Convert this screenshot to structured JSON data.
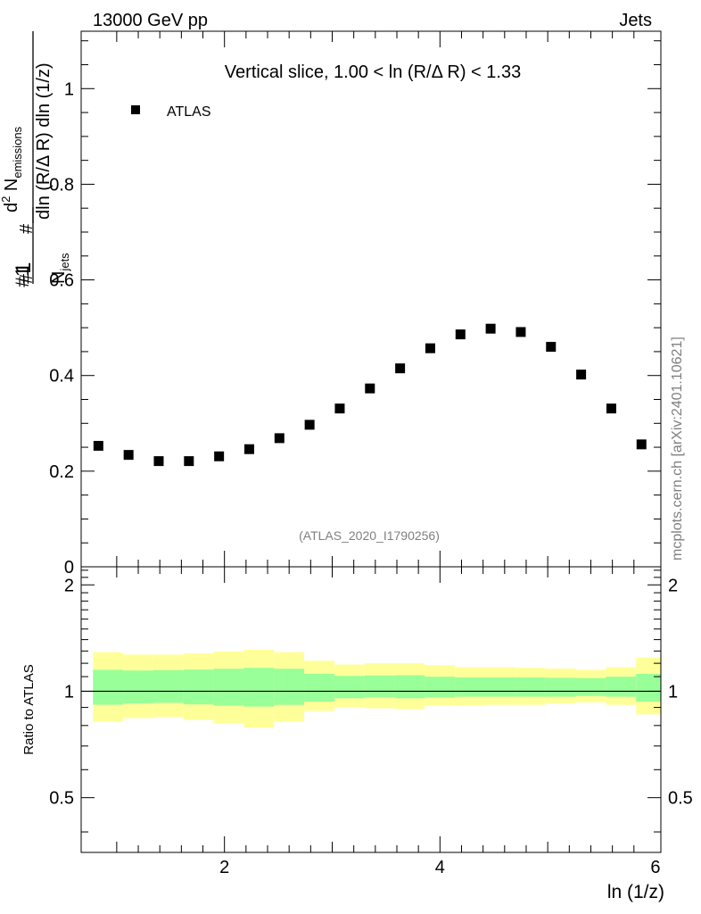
{
  "header": {
    "left": "13000 GeV pp",
    "right": "Jets"
  },
  "side_label": "mcplots.cern.ch [arXiv:2401.10621]",
  "chart_data": [
    {
      "type": "scatter",
      "title": "Vertical slice, 1.00 < ln (R/Δ R) < 1.33",
      "watermark": "(ATLAS_2020_I1790256)",
      "xlabel": "ln (1/z)",
      "ylabel_parts": {
        "prefix1": "#",
        "one": "1",
        "n_jets": "N",
        "n_jets_sub": "jets",
        "prefix2": "#",
        "num": "d",
        "num_sup": "2",
        "num_main": " N",
        "num_sub": "emissions",
        "den": "dln (R/Δ R) dln (1/z)"
      },
      "xlim": [
        0.67,
        6.05
      ],
      "ylim": [
        0,
        1.12
      ],
      "y_ticks": [
        0,
        0.2,
        0.4,
        0.6,
        0.8,
        1
      ],
      "y_tick_labels": [
        "0",
        "0.2",
        "0.4",
        "0.6",
        "0.8",
        "1"
      ],
      "legend": [
        {
          "label": "ATLAS",
          "marker": "square",
          "color": "#000000"
        }
      ],
      "series": [
        {
          "name": "ATLAS",
          "x": [
            0.83,
            1.11,
            1.39,
            1.67,
            1.95,
            2.23,
            2.51,
            2.79,
            3.07,
            3.35,
            3.63,
            3.91,
            4.19,
            4.47,
            4.75,
            5.03,
            5.31,
            5.59,
            5.87
          ],
          "y": [
            0.253,
            0.234,
            0.221,
            0.221,
            0.231,
            0.246,
            0.269,
            0.297,
            0.331,
            0.373,
            0.415,
            0.457,
            0.486,
            0.498,
            0.491,
            0.46,
            0.402,
            0.331,
            0.256
          ]
        }
      ]
    },
    {
      "type": "ratio",
      "ylabel": "Ratio to ATLAS",
      "xlabel": "ln (1/z)",
      "xlim": [
        0.67,
        6.05
      ],
      "ylim": [
        0.35,
        2.25
      ],
      "y_ticks": [
        0.5,
        1,
        2
      ],
      "y_tick_labels": [
        "0.5",
        "1",
        "2"
      ],
      "x_ticks": [
        2,
        4,
        6
      ],
      "x_tick_labels": [
        "2",
        "4",
        "6"
      ],
      "reference": 1,
      "bands": {
        "edges": [
          0.78,
          1.06,
          1.34,
          1.62,
          1.9,
          2.18,
          2.46,
          2.74,
          3.02,
          3.3,
          3.58,
          3.86,
          4.14,
          4.42,
          4.7,
          4.98,
          5.26,
          5.54,
          5.82,
          6.05
        ],
        "inner": {
          "color": "#99ff99",
          "lo": [
            0.916,
            0.924,
            0.927,
            0.918,
            0.91,
            0.905,
            0.915,
            0.935,
            0.955,
            0.96,
            0.955,
            0.96,
            0.965,
            0.965,
            0.965,
            0.965,
            0.97,
            0.965,
            0.935
          ],
          "hi": [
            1.15,
            1.145,
            1.148,
            1.152,
            1.158,
            1.165,
            1.158,
            1.12,
            1.105,
            1.108,
            1.11,
            1.1,
            1.095,
            1.095,
            1.095,
            1.092,
            1.09,
            1.1,
            1.12
          ]
        },
        "outer": {
          "color": "#ffff99",
          "lo": [
            0.82,
            0.84,
            0.845,
            0.83,
            0.81,
            0.79,
            0.82,
            0.88,
            0.9,
            0.895,
            0.89,
            0.91,
            0.91,
            0.915,
            0.915,
            0.925,
            0.93,
            0.915,
            0.86
          ],
          "hi": [
            1.29,
            1.27,
            1.27,
            1.28,
            1.295,
            1.31,
            1.29,
            1.22,
            1.19,
            1.2,
            1.2,
            1.185,
            1.17,
            1.17,
            1.165,
            1.16,
            1.15,
            1.17,
            1.245
          ]
        }
      }
    }
  ]
}
